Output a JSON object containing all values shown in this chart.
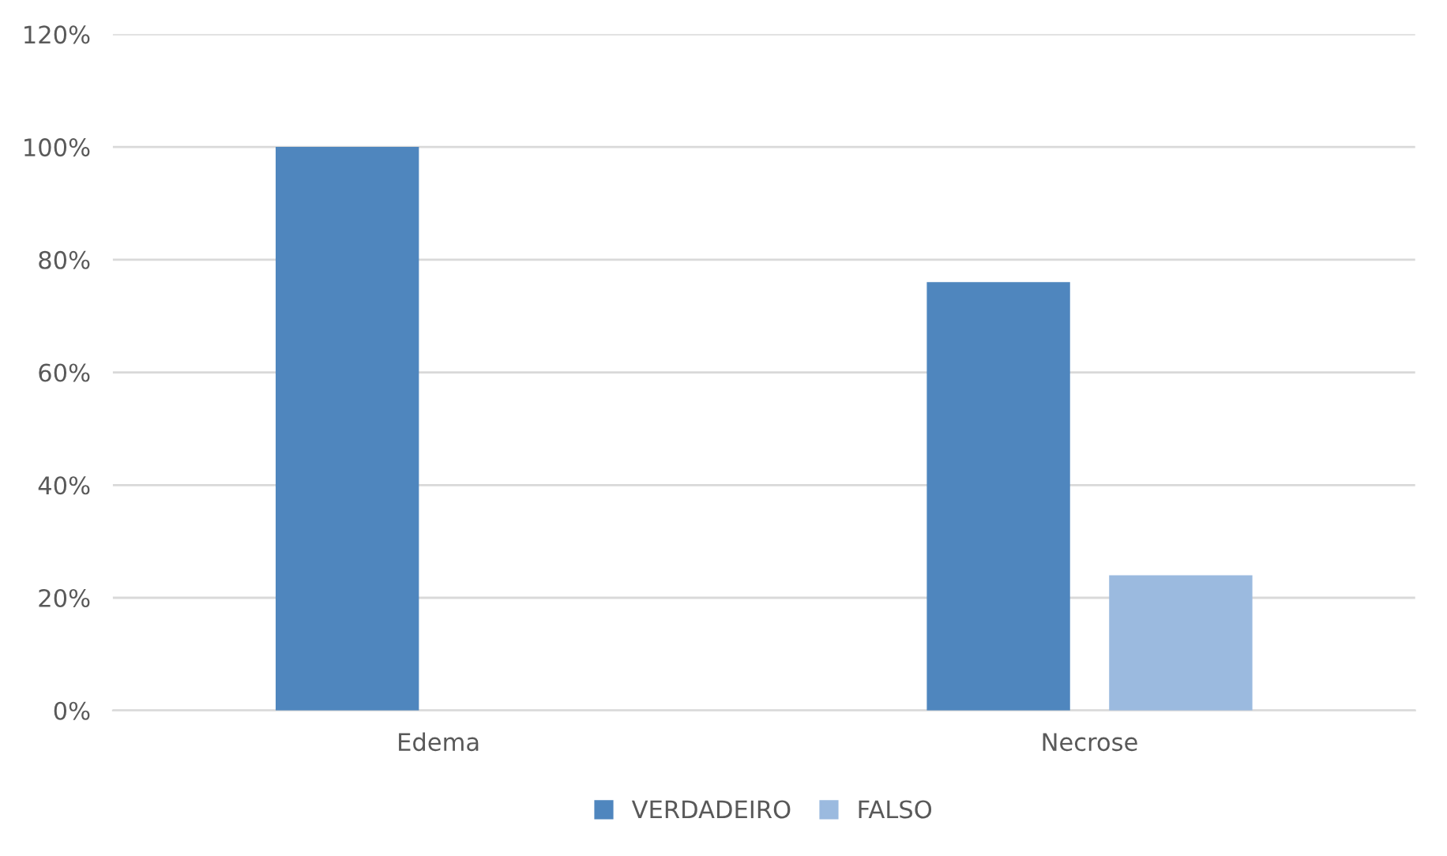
{
  "chart_data": {
    "type": "bar",
    "categories": [
      "Edema",
      "Necrose"
    ],
    "series": [
      {
        "name": "VERDADEIRO",
        "color": "#4f86be",
        "values": [
          100,
          76
        ]
      },
      {
        "name": "FALSO",
        "color": "#9bbadf",
        "values": [
          0,
          24
        ]
      }
    ],
    "ylim": [
      0,
      120
    ],
    "yticks": [
      {
        "value": 0,
        "label": "0%"
      },
      {
        "value": 20,
        "label": "20%"
      },
      {
        "value": 40,
        "label": "40%"
      },
      {
        "value": 60,
        "label": "60%"
      },
      {
        "value": 80,
        "label": "80%"
      },
      {
        "value": 100,
        "label": "100%"
      },
      {
        "value": 120,
        "label": "120%"
      }
    ],
    "grid": "y",
    "legend": "bottom"
  }
}
